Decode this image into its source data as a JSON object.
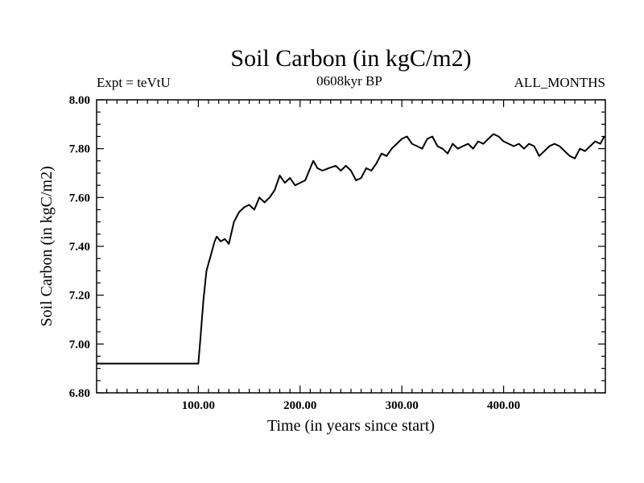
{
  "chart_data": {
    "type": "line",
    "title": "Soil Carbon (in kgC/m2)",
    "subtitle_left": "Expt = teVtU",
    "subtitle_center": "0608kyr BP",
    "subtitle_right": "ALL_MONTHS",
    "xlabel": "Time (in years since start)",
    "ylabel": "Soil Carbon (in kgC/m2)",
    "xlim": [
      0,
      500
    ],
    "ylim": [
      6.8,
      8.0
    ],
    "x_ticks": [
      100,
      200,
      300,
      400
    ],
    "x_tick_labels": [
      "100.00",
      "200.00",
      "300.00",
      "400.00"
    ],
    "y_ticks": [
      6.8,
      7.0,
      7.2,
      7.4,
      7.6,
      7.8,
      8.0
    ],
    "y_tick_labels": [
      "6.80",
      "7.00",
      "7.20",
      "7.40",
      "7.60",
      "7.80",
      "8.00"
    ],
    "grid": false,
    "line_color": "#000000",
    "series": [
      {
        "x": [
          0,
          100,
          102,
          105,
          108,
          112,
          116,
          118,
          122,
          126,
          130,
          135,
          140,
          145,
          150,
          155,
          160,
          165,
          170,
          175,
          180,
          185,
          190,
          195,
          200,
          205,
          210,
          213,
          217,
          222,
          228,
          235,
          240,
          245,
          250,
          255,
          260,
          265,
          270,
          275,
          280,
          285,
          290,
          295,
          300,
          305,
          310,
          315,
          320,
          325,
          330,
          335,
          340,
          345,
          350,
          355,
          360,
          365,
          370,
          375,
          380,
          385,
          390,
          395,
          400,
          405,
          410,
          415,
          420,
          425,
          430,
          435,
          440,
          445,
          450,
          455,
          460,
          465,
          470,
          475,
          480,
          485,
          490,
          495,
          499
        ],
        "y": [
          6.92,
          6.92,
          7.02,
          7.18,
          7.3,
          7.36,
          7.42,
          7.44,
          7.42,
          7.43,
          7.41,
          7.5,
          7.54,
          7.56,
          7.57,
          7.55,
          7.6,
          7.58,
          7.6,
          7.63,
          7.69,
          7.66,
          7.68,
          7.65,
          7.66,
          7.67,
          7.72,
          7.75,
          7.72,
          7.71,
          7.72,
          7.73,
          7.71,
          7.73,
          7.71,
          7.67,
          7.68,
          7.72,
          7.71,
          7.74,
          7.78,
          7.77,
          7.8,
          7.82,
          7.84,
          7.85,
          7.82,
          7.81,
          7.8,
          7.84,
          7.85,
          7.81,
          7.8,
          7.78,
          7.82,
          7.8,
          7.81,
          7.82,
          7.8,
          7.83,
          7.82,
          7.84,
          7.86,
          7.85,
          7.83,
          7.82,
          7.81,
          7.82,
          7.8,
          7.82,
          7.81,
          7.77,
          7.79,
          7.81,
          7.82,
          7.81,
          7.79,
          7.77,
          7.76,
          7.8,
          7.79,
          7.81,
          7.83,
          7.82,
          7.85
        ]
      }
    ]
  }
}
